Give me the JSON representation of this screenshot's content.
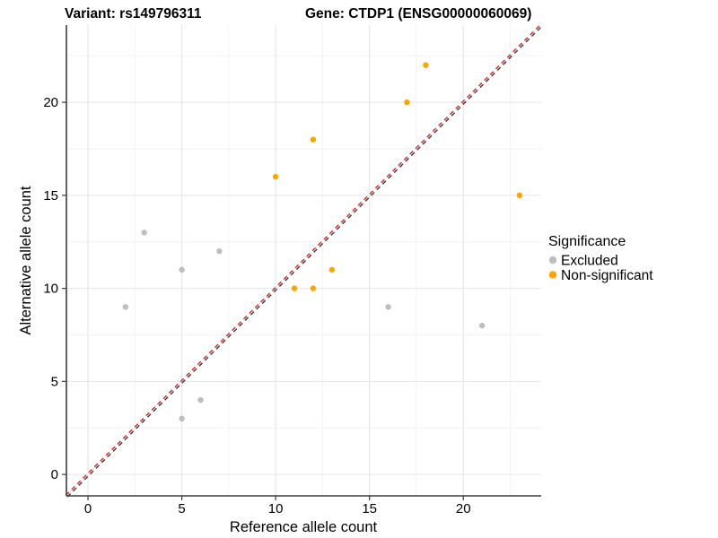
{
  "chart_data": {
    "type": "scatter",
    "title_left": "Variant: rs149796311",
    "title_right": "Gene: CTDP1 (ENSG00000060069)",
    "xlabel": "Reference allele count",
    "ylabel": "Alternative allele count",
    "xlim": [
      -1.15,
      24.15
    ],
    "ylim": [
      -1.15,
      24.15
    ],
    "x_ticks": [
      0,
      5,
      10,
      15,
      20
    ],
    "y_ticks": [
      0,
      5,
      10,
      15,
      20
    ],
    "x_minor_ticks": [
      2.5,
      7.5,
      12.5,
      17.5,
      22.5
    ],
    "y_minor_ticks": [
      2.5,
      7.5,
      12.5,
      17.5,
      22.5
    ],
    "grid": true,
    "legend_position": "right",
    "legend": {
      "title": "Significance",
      "entries": [
        {
          "label": "Excluded",
          "color": "#BEBEBE"
        },
        {
          "label": "Non-significant",
          "color": "#FFA500"
        }
      ]
    },
    "identity_line": {
      "slope": 1,
      "intercept": 0,
      "style": "dashed",
      "color_red": "#E02020",
      "color_dark": "#3F3F3F"
    },
    "series": [
      {
        "name": "Excluded",
        "color": "#BEBEBE",
        "points": [
          [
            2,
            9
          ],
          [
            3,
            13
          ],
          [
            5,
            3
          ],
          [
            5,
            11
          ],
          [
            6,
            4
          ],
          [
            7,
            12
          ],
          [
            16,
            9
          ],
          [
            21,
            8
          ]
        ]
      },
      {
        "name": "Non-significant",
        "color": "#FFA500",
        "points": [
          [
            10,
            16
          ],
          [
            11,
            10
          ],
          [
            12,
            10
          ],
          [
            12,
            18
          ],
          [
            13,
            11
          ],
          [
            17,
            20
          ],
          [
            18,
            22
          ],
          [
            23,
            15
          ]
        ]
      }
    ],
    "colors": {
      "background": "#FFFFFF",
      "grid_major": "#E5E5E5",
      "grid_minor": "#F2F2F2",
      "axis": "#3C3C3C",
      "text": "#000000"
    }
  }
}
